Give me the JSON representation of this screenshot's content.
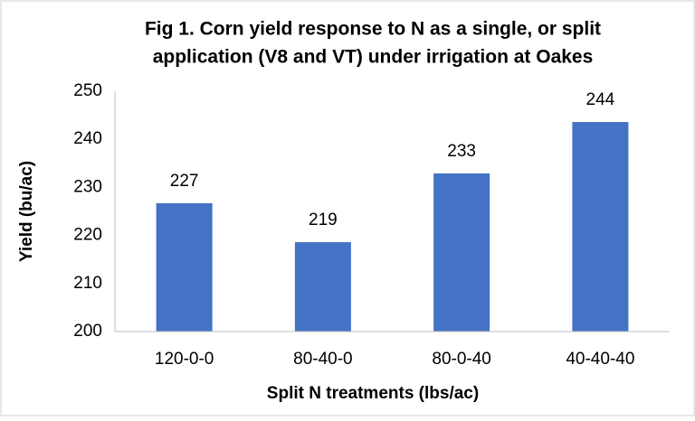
{
  "chart_data": {
    "type": "bar",
    "title": [
      "Fig 1. Corn yield response to N as a single, or split",
      "application (V8 and VT) under irrigation at Oakes"
    ],
    "x_label": "Split N treatments (lbs/ac)",
    "y_label": "Yield (bu/ac)",
    "categories": [
      "120-0-0",
      "80-40-0",
      "80-0-40",
      "40-40-40"
    ],
    "values": [
      226.7,
      218.6,
      232.9,
      243.6
    ],
    "value_labels": [
      "227",
      "219",
      "233",
      "244"
    ],
    "color": "#4472c4",
    "ylim": [
      200,
      250
    ],
    "yticks": [
      200,
      210,
      220,
      230,
      240,
      250
    ],
    "grid": false
  }
}
